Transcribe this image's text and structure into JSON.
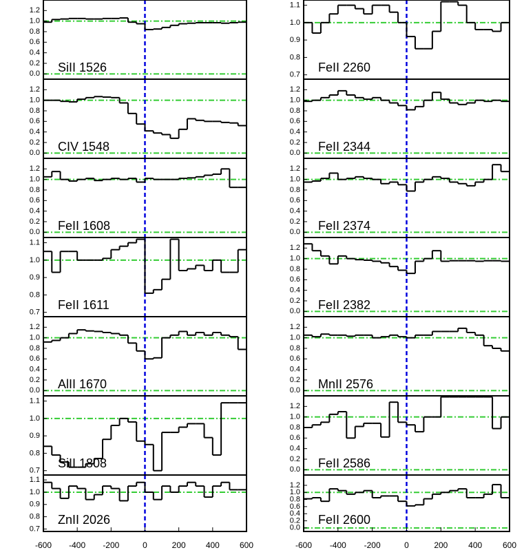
{
  "chart_data": [
    {
      "type": "step",
      "title": "SiII 1526",
      "xlim": [
        -600,
        600
      ],
      "ylim": [
        -0.1,
        1.4
      ],
      "yticks": [
        {
          "value": 0,
          "label": "0.0"
        },
        0.2,
        0.4,
        0.6,
        0.8,
        {
          "value": 1,
          "label": "1.0"
        },
        1.2
      ],
      "color": "#000000",
      "reference_lines": [
        0,
        1
      ],
      "reference_color": "#33cc33",
      "zero_line": 0,
      "zero_color": "#0000dd",
      "x": [
        -575,
        -525,
        -475,
        -425,
        -375,
        -325,
        -275,
        -225,
        -175,
        -125,
        -75,
        -25,
        25,
        75,
        125,
        175,
        225,
        275,
        325,
        375,
        425,
        475,
        525,
        575
      ],
      "values": [
        0.98,
        1.03,
        1.04,
        1.05,
        1.05,
        1.04,
        1.04,
        1.05,
        1.05,
        1.06,
        0.98,
        0.95,
        0.84,
        0.85,
        0.88,
        0.92,
        0.95,
        0.96,
        0.97,
        0.97,
        0.97,
        0.96,
        0.97,
        0.98
      ]
    },
    {
      "type": "step",
      "title": "CIV 1548",
      "xlim": [
        -600,
        600
      ],
      "ylim": [
        -0.1,
        1.4
      ],
      "yticks": [
        {
          "value": 0,
          "label": "0.0"
        },
        0.2,
        0.4,
        0.6,
        0.8,
        {
          "value": 1,
          "label": "1.0"
        },
        1.2
      ],
      "color": "#000000",
      "reference_lines": [
        0,
        1
      ],
      "reference_color": "#33cc33",
      "zero_line": 0,
      "zero_color": "#0000dd",
      "x": [
        -575,
        -525,
        -475,
        -425,
        -375,
        -325,
        -275,
        -225,
        -175,
        -125,
        -75,
        -25,
        25,
        75,
        125,
        175,
        225,
        275,
        325,
        375,
        425,
        475,
        525,
        575
      ],
      "values": [
        1.0,
        1.0,
        0.98,
        0.97,
        1.02,
        1.05,
        1.07,
        1.06,
        1.05,
        0.95,
        0.75,
        0.55,
        0.42,
        0.38,
        0.35,
        0.28,
        0.45,
        0.65,
        0.62,
        0.6,
        0.6,
        0.58,
        0.57,
        0.52
      ]
    },
    {
      "type": "step",
      "title": "FeII 1608",
      "xlim": [
        -600,
        600
      ],
      "ylim": [
        -0.1,
        1.4
      ],
      "yticks": [
        {
          "value": 0,
          "label": "0.0"
        },
        0.2,
        0.4,
        0.6,
        0.8,
        {
          "value": 1,
          "label": "1.0"
        },
        1.2
      ],
      "color": "#000000",
      "reference_lines": [
        0,
        1
      ],
      "reference_color": "#33cc33",
      "zero_line": 0,
      "zero_color": "#0000dd",
      "x": [
        -575,
        -525,
        -475,
        -425,
        -375,
        -325,
        -275,
        -225,
        -175,
        -125,
        -75,
        -25,
        25,
        75,
        125,
        175,
        225,
        275,
        325,
        375,
        425,
        475,
        525,
        575
      ],
      "values": [
        1.05,
        1.15,
        1.0,
        0.97,
        1.0,
        1.02,
        0.98,
        1.0,
        1.02,
        1.0,
        1.02,
        0.95,
        1.02,
        1.0,
        1.0,
        1.0,
        1.02,
        1.03,
        1.05,
        1.08,
        1.1,
        1.2,
        0.85,
        0.85
      ]
    },
    {
      "type": "step",
      "title": "FeII 1611",
      "xlim": [
        -600,
        600
      ],
      "ylim": [
        0.675,
        1.13
      ],
      "yticks": [
        0.7,
        0.8,
        0.9,
        {
          "value": 1,
          "label": "1.0"
        },
        1.1
      ],
      "color": "#000000",
      "reference_lines": [
        1
      ],
      "reference_color": "#33cc33",
      "zero_line": 0,
      "zero_color": "#0000dd",
      "x": [
        -575,
        -525,
        -475,
        -425,
        -375,
        -325,
        -275,
        -225,
        -175,
        -125,
        -75,
        -25,
        25,
        75,
        125,
        175,
        225,
        275,
        325,
        375,
        425,
        475,
        525,
        575
      ],
      "values": [
        1.05,
        0.93,
        1.05,
        1.05,
        1.0,
        1.0,
        1.0,
        1.01,
        1.06,
        1.08,
        1.1,
        1.12,
        0.81,
        0.83,
        0.89,
        1.12,
        0.94,
        0.95,
        0.97,
        0.94,
        1.0,
        0.93,
        0.93,
        1.06
      ]
    },
    {
      "type": "step",
      "title": "AlII 1670",
      "xlim": [
        -600,
        600
      ],
      "ylim": [
        -0.1,
        1.4
      ],
      "yticks": [
        {
          "value": 0,
          "label": "0.0"
        },
        0.2,
        0.4,
        0.6,
        0.8,
        {
          "value": 1,
          "label": "1.0"
        },
        1.2
      ],
      "color": "#000000",
      "reference_lines": [
        0,
        1
      ],
      "reference_color": "#33cc33",
      "zero_line": 0,
      "zero_color": "#0000dd",
      "x": [
        -575,
        -525,
        -475,
        -425,
        -375,
        -325,
        -275,
        -225,
        -175,
        -125,
        -75,
        -25,
        25,
        75,
        125,
        175,
        225,
        275,
        325,
        375,
        425,
        475,
        525,
        575
      ],
      "values": [
        0.92,
        0.95,
        1.0,
        1.08,
        1.15,
        1.13,
        1.12,
        1.1,
        1.08,
        1.05,
        0.9,
        0.75,
        0.6,
        0.62,
        1.0,
        1.05,
        1.12,
        1.05,
        1.1,
        1.05,
        1.1,
        1.05,
        1.02,
        0.78
      ]
    },
    {
      "type": "step",
      "title": "SiII 1808",
      "xlim": [
        -600,
        600
      ],
      "ylim": [
        0.675,
        1.13
      ],
      "yticks": [
        0.7,
        0.8,
        0.9,
        {
          "value": 1,
          "label": "1.0"
        },
        1.1
      ],
      "color": "#000000",
      "reference_lines": [
        1
      ],
      "reference_color": "#33cc33",
      "zero_line": 0,
      "zero_color": "#0000dd",
      "x": [
        -575,
        -525,
        -475,
        -425,
        -375,
        -325,
        -275,
        -225,
        -175,
        -125,
        -75,
        -25,
        25,
        75,
        125,
        175,
        225,
        275,
        325,
        375,
        425,
        475,
        525,
        575
      ],
      "values": [
        0.84,
        0.79,
        0.75,
        0.72,
        0.72,
        0.74,
        0.77,
        0.88,
        0.96,
        1.0,
        0.98,
        0.87,
        0.85,
        0.7,
        0.92,
        0.92,
        0.95,
        0.97,
        0.97,
        0.89,
        0.79,
        1.09,
        1.09,
        1.09
      ]
    },
    {
      "type": "step",
      "title": "ZnII 2026",
      "xlim": [
        -600,
        600
      ],
      "ylim": [
        0.68,
        1.14
      ],
      "yticks": [
        0.7,
        0.8,
        0.9,
        {
          "value": 1,
          "label": "1.0"
        },
        1.1
      ],
      "color": "#000000",
      "reference_lines": [
        1
      ],
      "reference_color": "#33cc33",
      "zero_line": 0,
      "zero_color": "#0000dd",
      "xticks": [
        -600,
        -400,
        -200,
        0,
        200,
        400,
        600
      ],
      "x": [
        -575,
        -525,
        -475,
        -425,
        -375,
        -325,
        -275,
        -225,
        -175,
        -125,
        -75,
        -25,
        25,
        75,
        125,
        175,
        225,
        275,
        325,
        375,
        425,
        475,
        525,
        575
      ],
      "values": [
        1.08,
        1.03,
        0.95,
        1.05,
        1.03,
        0.94,
        0.98,
        1.05,
        1.03,
        0.93,
        1.05,
        1.08,
        1.0,
        0.94,
        1.05,
        1.0,
        1.05,
        1.08,
        1.05,
        0.96,
        1.05,
        1.08,
        1.02,
        1.02
      ]
    },
    {
      "type": "step",
      "title": "FeII 2260",
      "xlim": [
        -600,
        600
      ],
      "ylim": [
        0.675,
        1.13
      ],
      "yticks": [
        0.7,
        0.8,
        0.9,
        {
          "value": 1,
          "label": "1.0"
        },
        1.1
      ],
      "color": "#000000",
      "reference_lines": [
        1
      ],
      "reference_color": "#33cc33",
      "zero_line": 0,
      "zero_color": "#0000dd",
      "x": [
        -575,
        -525,
        -475,
        -425,
        -375,
        -325,
        -275,
        -225,
        -175,
        -125,
        -75,
        -25,
        25,
        75,
        125,
        175,
        225,
        275,
        325,
        375,
        425,
        475,
        525,
        575
      ],
      "values": [
        1.0,
        0.94,
        1.0,
        1.05,
        1.1,
        1.1,
        1.08,
        1.05,
        1.1,
        1.1,
        1.06,
        1.0,
        0.92,
        0.85,
        0.85,
        0.95,
        1.12,
        1.12,
        1.1,
        1.0,
        0.96,
        0.96,
        0.95,
        1.0
      ]
    },
    {
      "type": "step",
      "title": "FeII 2344",
      "xlim": [
        -600,
        600
      ],
      "ylim": [
        -0.1,
        1.4
      ],
      "yticks": [
        {
          "value": 0,
          "label": "0.0"
        },
        0.2,
        0.4,
        0.6,
        0.8,
        {
          "value": 1,
          "label": "1.0"
        },
        1.2
      ],
      "color": "#000000",
      "reference_lines": [
        0,
        1
      ],
      "reference_color": "#33cc33",
      "zero_line": 0,
      "zero_color": "#0000dd",
      "x": [
        -575,
        -525,
        -475,
        -425,
        -375,
        -325,
        -275,
        -225,
        -175,
        -125,
        -75,
        -25,
        25,
        75,
        125,
        175,
        225,
        275,
        325,
        375,
        425,
        475,
        525,
        575
      ],
      "values": [
        0.98,
        1.0,
        1.05,
        1.1,
        1.18,
        1.1,
        1.05,
        1.02,
        1.05,
        1.0,
        0.95,
        0.9,
        0.82,
        0.88,
        1.0,
        1.15,
        1.02,
        0.95,
        0.92,
        0.95,
        1.0,
        0.98,
        1.0,
        0.98
      ]
    },
    {
      "type": "step",
      "title": "FeII 2374",
      "xlim": [
        -600,
        600
      ],
      "ylim": [
        -0.1,
        1.4
      ],
      "yticks": [
        {
          "value": 0,
          "label": "0.0"
        },
        0.2,
        0.4,
        0.6,
        0.8,
        {
          "value": 1,
          "label": "1.0"
        },
        1.2
      ],
      "color": "#000000",
      "reference_lines": [
        0,
        1
      ],
      "reference_color": "#33cc33",
      "zero_line": 0,
      "zero_color": "#0000dd",
      "x": [
        -575,
        -525,
        -475,
        -425,
        -375,
        -325,
        -275,
        -225,
        -175,
        -125,
        -75,
        -25,
        25,
        75,
        125,
        175,
        225,
        275,
        325,
        375,
        425,
        475,
        525,
        575
      ],
      "values": [
        0.95,
        0.97,
        1.02,
        1.12,
        1.0,
        1.02,
        1.05,
        1.02,
        1.0,
        0.92,
        0.95,
        0.9,
        0.78,
        0.95,
        1.0,
        1.05,
        1.02,
        0.95,
        0.92,
        0.88,
        0.95,
        1.0,
        1.28,
        1.15
      ]
    },
    {
      "type": "step",
      "title": "FeII 2382",
      "xlim": [
        -600,
        600
      ],
      "ylim": [
        -0.1,
        1.4
      ],
      "yticks": [
        {
          "value": 0,
          "label": "0.0"
        },
        0.2,
        0.4,
        0.6,
        0.8,
        {
          "value": 1,
          "label": "1.0"
        },
        1.2
      ],
      "color": "#000000",
      "reference_lines": [
        0,
        1
      ],
      "reference_color": "#33cc33",
      "zero_line": 0,
      "zero_color": "#0000dd",
      "x": [
        -575,
        -525,
        -475,
        -425,
        -375,
        -325,
        -275,
        -225,
        -175,
        -125,
        -75,
        -25,
        25,
        75,
        125,
        175,
        225,
        275,
        325,
        375,
        425,
        475,
        525,
        575
      ],
      "values": [
        1.28,
        1.15,
        1.05,
        0.9,
        1.05,
        1.0,
        0.98,
        0.97,
        0.95,
        0.92,
        0.85,
        0.78,
        0.72,
        0.95,
        1.0,
        1.15,
        0.95,
        0.96,
        0.96,
        0.96,
        0.95,
        0.96,
        0.96,
        0.95
      ]
    },
    {
      "type": "step",
      "title": "MnII 2576",
      "xlim": [
        -600,
        600
      ],
      "ylim": [
        -0.1,
        1.4
      ],
      "yticks": [
        {
          "value": 0,
          "label": "0.0"
        },
        0.2,
        0.4,
        0.6,
        0.8,
        {
          "value": 1,
          "label": "1.0"
        },
        1.2
      ],
      "color": "#000000",
      "reference_lines": [
        0,
        1
      ],
      "reference_color": "#33cc33",
      "zero_line": 0,
      "zero_color": "#0000dd",
      "x": [
        -575,
        -525,
        -475,
        -425,
        -375,
        -325,
        -275,
        -225,
        -175,
        -125,
        -75,
        -25,
        25,
        75,
        125,
        175,
        225,
        275,
        325,
        375,
        425,
        475,
        525,
        575
      ],
      "values": [
        1.05,
        1.02,
        1.07,
        1.05,
        1.05,
        1.03,
        1.05,
        1.05,
        1.0,
        1.02,
        1.05,
        1.02,
        1.0,
        1.05,
        1.05,
        1.12,
        1.12,
        1.12,
        1.18,
        1.1,
        1.05,
        0.85,
        0.8,
        0.75
      ]
    },
    {
      "type": "step",
      "title": "FeII 2586",
      "xlim": [
        -600,
        600
      ],
      "ylim": [
        -0.1,
        1.4
      ],
      "yticks": [
        {
          "value": 0,
          "label": "0.0"
        },
        0.2,
        0.4,
        0.6,
        0.8,
        {
          "value": 1,
          "label": "1.0"
        },
        1.2
      ],
      "color": "#000000",
      "reference_lines": [
        0,
        1
      ],
      "reference_color": "#33cc33",
      "zero_line": 0,
      "zero_color": "#0000dd",
      "x": [
        -575,
        -525,
        -475,
        -425,
        -375,
        -325,
        -275,
        -225,
        -175,
        -125,
        -75,
        -25,
        25,
        75,
        125,
        175,
        225,
        275,
        325,
        375,
        425,
        475,
        525,
        575
      ],
      "values": [
        0.8,
        0.85,
        0.9,
        1.05,
        1.1,
        0.6,
        0.82,
        0.88,
        0.88,
        0.62,
        1.28,
        0.9,
        0.85,
        0.72,
        1.0,
        1.0,
        1.38,
        1.38,
        1.38,
        1.38,
        1.38,
        1.38,
        0.78,
        1.0
      ]
    },
    {
      "type": "step",
      "title": "FeII 2600",
      "xlim": [
        -600,
        600
      ],
      "ylim": [
        -0.1,
        1.49
      ],
      "yticks": [
        {
          "value": 0,
          "label": "0.0"
        },
        0.2,
        0.4,
        0.6,
        0.8,
        {
          "value": 1,
          "label": "1.0"
        },
        1.2
      ],
      "color": "#000000",
      "reference_lines": [
        0,
        1
      ],
      "reference_color": "#33cc33",
      "zero_line": 0,
      "zero_color": "#0000dd",
      "xticks": [
        -600,
        -400,
        -200,
        0,
        200,
        400,
        600
      ],
      "x": [
        -575,
        -525,
        -475,
        -425,
        -375,
        -325,
        -275,
        -225,
        -175,
        -125,
        -75,
        -25,
        25,
        75,
        125,
        175,
        225,
        275,
        325,
        375,
        425,
        475,
        525,
        575
      ],
      "values": [
        0.82,
        0.85,
        0.75,
        1.1,
        1.05,
        0.95,
        1.0,
        1.05,
        0.85,
        0.9,
        0.9,
        0.75,
        0.62,
        0.65,
        0.82,
        0.95,
        1.0,
        1.05,
        1.1,
        0.85,
        0.85,
        0.95,
        1.22,
        0.85
      ]
    }
  ]
}
